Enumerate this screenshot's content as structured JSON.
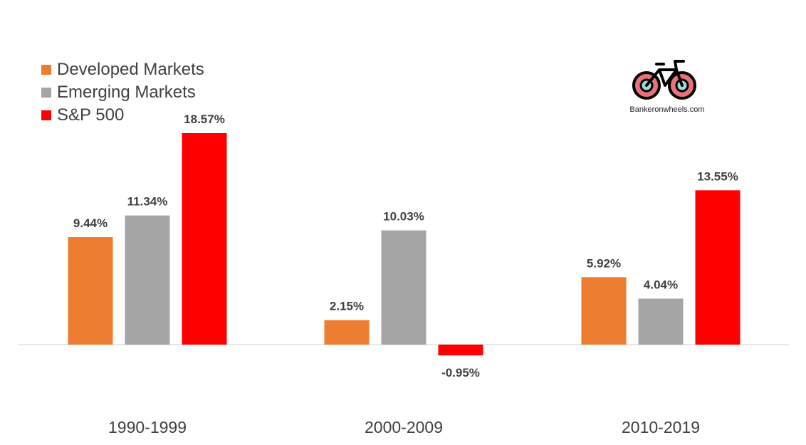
{
  "chart_data": {
    "type": "bar",
    "categories": [
      "1990-1999",
      "2000-2009",
      "2010-2019"
    ],
    "series": [
      {
        "name": "Developed Markets",
        "color": "#ED7D31",
        "values": [
          9.44,
          2.15,
          5.92
        ],
        "labels": [
          "9.44%",
          "2.15%",
          "5.92%"
        ]
      },
      {
        "name": "Emerging Markets",
        "color": "#A5A5A5",
        "values": [
          11.34,
          10.03,
          4.04
        ],
        "labels": [
          "11.34%",
          "10.03%",
          "4.04%"
        ]
      },
      {
        "name": "S&P 500",
        "color": "#FF0000",
        "values": [
          18.57,
          -0.95,
          13.55
        ],
        "labels": [
          "18.57%",
          "-0.95%",
          "13.55%"
        ]
      }
    ],
    "title": "",
    "xlabel": "",
    "ylabel": "",
    "grid": false,
    "legend_position": "top-left"
  },
  "logo": {
    "text": "Bankeronwheels.com",
    "icon": "bicycle-icon",
    "wheel_color": "#E8717A",
    "frame_color": "#000000"
  }
}
